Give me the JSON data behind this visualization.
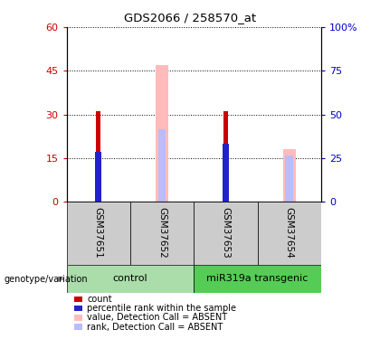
{
  "title": "GDS2066 / 258570_at",
  "samples": [
    "GSM37651",
    "GSM37652",
    "GSM37653",
    "GSM37654"
  ],
  "group_labels": [
    "control",
    "miR319a transgenic"
  ],
  "ylim_left": [
    0,
    60
  ],
  "ylim_right": [
    0,
    100
  ],
  "yticks_left": [
    0,
    15,
    30,
    45,
    60
  ],
  "yticks_right": [
    0,
    25,
    50,
    75,
    100
  ],
  "count_values": [
    31,
    null,
    31,
    null
  ],
  "percentile_values": [
    17,
    null,
    20,
    null
  ],
  "absent_value_values": [
    null,
    47,
    null,
    18
  ],
  "absent_rank_values": [
    null,
    25,
    null,
    16
  ],
  "color_count": "#cc0000",
  "color_percentile": "#2222cc",
  "color_absent_value": "#ffbbbb",
  "color_absent_rank": "#bbbbff",
  "color_group_control": "#aaddaa",
  "color_group_transgenic": "#55cc55",
  "color_sample_bg": "#cccccc",
  "left_tick_color": "#cc0000",
  "right_tick_color": "#0000cc",
  "legend_items": [
    {
      "label": "count",
      "color": "#cc0000"
    },
    {
      "label": "percentile rank within the sample",
      "color": "#2222cc"
    },
    {
      "label": "value, Detection Call = ABSENT",
      "color": "#ffbbbb"
    },
    {
      "label": "rank, Detection Call = ABSENT",
      "color": "#bbbbff"
    }
  ],
  "x_positions": [
    1,
    2,
    3,
    4
  ],
  "xlim": [
    0.5,
    4.5
  ],
  "narrow_bar_width": 0.07,
  "wide_bar_width": 0.2
}
